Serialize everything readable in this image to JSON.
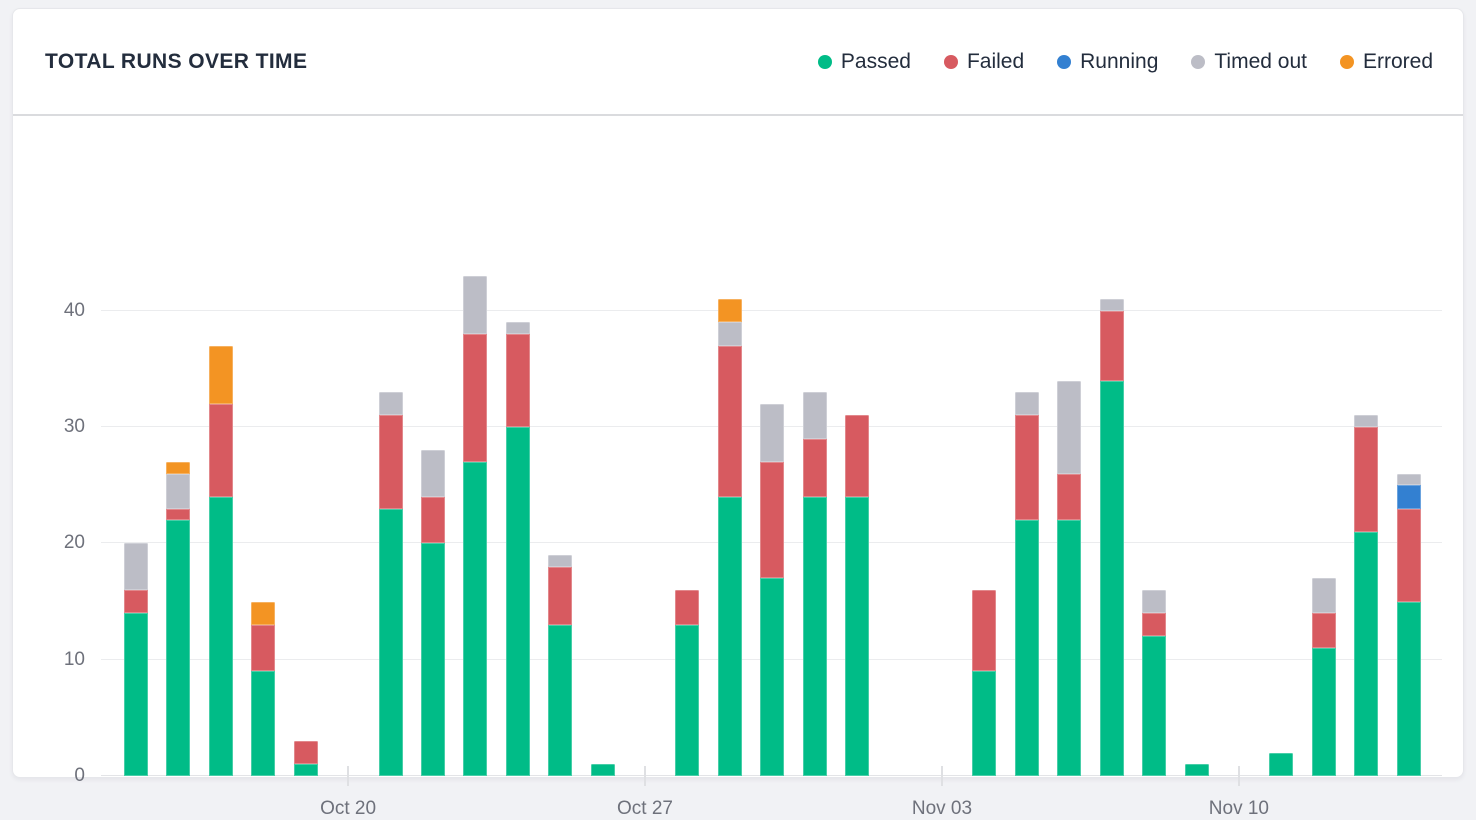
{
  "header": {
    "title": "TOTAL RUNS OVER TIME"
  },
  "legend": [
    {
      "label": "Passed",
      "key": "passed"
    },
    {
      "label": "Failed",
      "key": "failed"
    },
    {
      "label": "Running",
      "key": "running"
    },
    {
      "label": "Timed out",
      "key": "timed_out"
    },
    {
      "label": "Errored",
      "key": "errored"
    }
  ],
  "colors": {
    "passed": "#00BC87",
    "failed": "#D75A60",
    "running": "#3380D1",
    "timed_out": "#BCBDC6",
    "errored": "#F39423"
  },
  "chart_data": {
    "type": "bar",
    "stacked": true,
    "title": "TOTAL RUNS OVER TIME",
    "xlabel": "",
    "ylabel": "",
    "ylim": [
      0,
      44
    ],
    "yticks": [
      0,
      10,
      20,
      30,
      40
    ],
    "grid": true,
    "legend_position": "top-right",
    "stack_order": [
      "passed",
      "failed",
      "running",
      "timed_out",
      "errored"
    ],
    "x_tick_labels": [
      "Oct 20",
      "Oct 27",
      "Nov 03",
      "Nov 10"
    ],
    "slots": [
      {
        "type": "bar",
        "passed": 14,
        "failed": 2,
        "running": 0,
        "timed_out": 4,
        "errored": 0
      },
      {
        "type": "bar",
        "passed": 22,
        "failed": 1,
        "running": 0,
        "timed_out": 3,
        "errored": 1
      },
      {
        "type": "bar",
        "passed": 24,
        "failed": 8,
        "running": 0,
        "timed_out": 0,
        "errored": 5
      },
      {
        "type": "bar",
        "passed": 9,
        "failed": 4,
        "running": 0,
        "timed_out": 0,
        "errored": 2
      },
      {
        "type": "bar",
        "passed": 1,
        "failed": 2,
        "running": 0,
        "timed_out": 0,
        "errored": 0
      },
      {
        "type": "tick",
        "label": "Oct 20"
      },
      {
        "type": "bar",
        "passed": 23,
        "failed": 8,
        "running": 0,
        "timed_out": 2,
        "errored": 0
      },
      {
        "type": "bar",
        "passed": 20,
        "failed": 4,
        "running": 0,
        "timed_out": 4,
        "errored": 0
      },
      {
        "type": "bar",
        "passed": 27,
        "failed": 11,
        "running": 0,
        "timed_out": 5,
        "errored": 0
      },
      {
        "type": "bar",
        "passed": 30,
        "failed": 8,
        "running": 0,
        "timed_out": 1,
        "errored": 0
      },
      {
        "type": "bar",
        "passed": 13,
        "failed": 5,
        "running": 0,
        "timed_out": 1,
        "errored": 0
      },
      {
        "type": "bar",
        "passed": 1,
        "failed": 0,
        "running": 0,
        "timed_out": 0,
        "errored": 0
      },
      {
        "type": "tick",
        "label": "Oct 27"
      },
      {
        "type": "bar",
        "passed": 13,
        "failed": 3,
        "running": 0,
        "timed_out": 0,
        "errored": 0
      },
      {
        "type": "bar",
        "passed": 24,
        "failed": 13,
        "running": 0,
        "timed_out": 2,
        "errored": 2
      },
      {
        "type": "bar",
        "passed": 17,
        "failed": 10,
        "running": 0,
        "timed_out": 5,
        "errored": 0
      },
      {
        "type": "bar",
        "passed": 24,
        "failed": 5,
        "running": 0,
        "timed_out": 4,
        "errored": 0
      },
      {
        "type": "bar",
        "passed": 24,
        "failed": 7,
        "running": 0,
        "timed_out": 0,
        "errored": 0
      },
      {
        "type": "gap"
      },
      {
        "type": "tick",
        "label": "Nov 03"
      },
      {
        "type": "bar",
        "passed": 9,
        "failed": 7,
        "running": 0,
        "timed_out": 0,
        "errored": 0
      },
      {
        "type": "bar",
        "passed": 22,
        "failed": 9,
        "running": 0,
        "timed_out": 2,
        "errored": 0
      },
      {
        "type": "bar",
        "passed": 22,
        "failed": 4,
        "running": 0,
        "timed_out": 8,
        "errored": 0
      },
      {
        "type": "bar",
        "passed": 34,
        "failed": 6,
        "running": 0,
        "timed_out": 1,
        "errored": 0
      },
      {
        "type": "bar",
        "passed": 12,
        "failed": 2,
        "running": 0,
        "timed_out": 2,
        "errored": 0
      },
      {
        "type": "bar",
        "passed": 1,
        "failed": 0,
        "running": 0,
        "timed_out": 0,
        "errored": 0
      },
      {
        "type": "tick",
        "label": "Nov 10"
      },
      {
        "type": "bar",
        "passed": 2,
        "failed": 0,
        "running": 0,
        "timed_out": 0,
        "errored": 0
      },
      {
        "type": "bar",
        "passed": 11,
        "failed": 3,
        "running": 0,
        "timed_out": 3,
        "errored": 0
      },
      {
        "type": "bar",
        "passed": 21,
        "failed": 9,
        "running": 0,
        "timed_out": 1,
        "errored": 0
      },
      {
        "type": "bar",
        "passed": 15,
        "failed": 8,
        "running": 2,
        "timed_out": 1,
        "errored": 0
      }
    ]
  }
}
